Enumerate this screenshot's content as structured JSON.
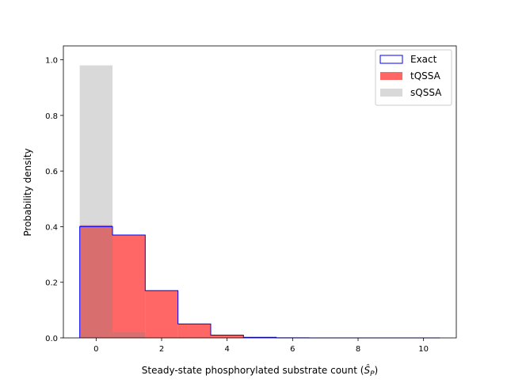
{
  "chart_data": {
    "type": "bar",
    "title": "",
    "xlabel_main": "Steady-state phosphorylated substrate count (",
    "xlabel_math": "Ŝ",
    "xlabel_sub": "P",
    "xlabel_end": ")",
    "ylabel": "Probability density",
    "xlim": [
      -1.0,
      11.0
    ],
    "ylim": [
      0,
      1.05
    ],
    "xticks": [
      0,
      2,
      4,
      6,
      8,
      10
    ],
    "yticks": [
      0.0,
      0.2,
      0.4,
      0.6,
      0.8,
      1.0
    ],
    "xtick_labels": [
      "0",
      "2",
      "4",
      "6",
      "8",
      "10"
    ],
    "ytick_labels": [
      "0.0",
      "0.2",
      "0.4",
      "0.6",
      "0.8",
      "1.0"
    ],
    "bin_edges": [
      -0.5,
      0.5,
      1.5,
      2.5,
      3.5,
      4.5,
      5.5,
      6.5,
      7.5,
      8.5,
      9.5,
      10.5
    ],
    "series": [
      {
        "name": "Exact",
        "style": "step",
        "color": "#0000ff",
        "values": [
          0.4,
          0.37,
          0.17,
          0.05,
          0.01,
          0.002,
          0.0005,
          0.0,
          0.0,
          0.0,
          0.0
        ]
      },
      {
        "name": "tQSSA",
        "style": "filled",
        "color": "#ff0000",
        "alpha": 0.6,
        "values": [
          0.405,
          0.37,
          0.17,
          0.05,
          0.01,
          0.002,
          0.0005,
          0.0,
          0.0,
          0.0,
          0.0
        ]
      },
      {
        "name": "sQSSA",
        "style": "filled",
        "color": "#808080",
        "alpha": 0.3,
        "values": [
          0.98,
          0.02,
          0.0,
          0.0,
          0.0,
          0.0,
          0.0,
          0.0,
          0.0,
          0.0,
          0.0
        ]
      }
    ],
    "legend_position": "top-right",
    "grid": false
  }
}
